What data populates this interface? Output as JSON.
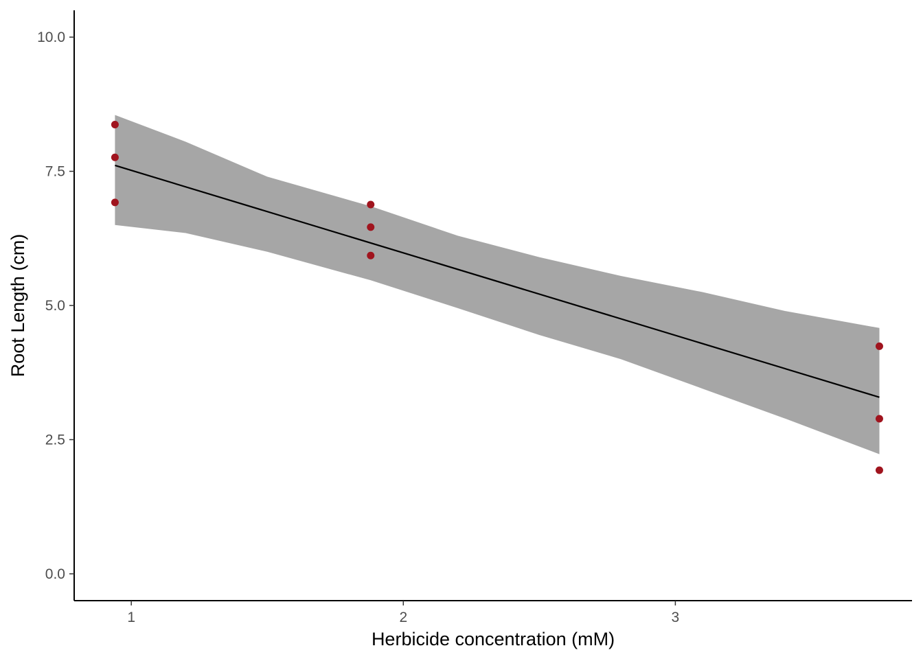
{
  "chart_data": {
    "type": "scatter",
    "title": "",
    "xlabel": "Herbicide concentration (mM)",
    "ylabel": "Root Length (cm)",
    "xlim": [
      0.79,
      3.87
    ],
    "ylim": [
      -0.5,
      10.5
    ],
    "xticks": [
      1,
      2,
      3
    ],
    "xtick_labels": [
      "1",
      "2",
      "3"
    ],
    "yticks": [
      0,
      2.5,
      5,
      7.5,
      10
    ],
    "ytick_labels": [
      "0.0",
      "2.5",
      "5.0",
      "7.5",
      "10.0"
    ],
    "grid": false,
    "legend": "none",
    "points": [
      {
        "x": 0.94,
        "y": 8.37
      },
      {
        "x": 0.94,
        "y": 7.76
      },
      {
        "x": 0.94,
        "y": 6.92
      },
      {
        "x": 1.88,
        "y": 6.88
      },
      {
        "x": 1.88,
        "y": 6.46
      },
      {
        "x": 1.88,
        "y": 5.93
      },
      {
        "x": 3.75,
        "y": 4.24
      },
      {
        "x": 3.75,
        "y": 2.89
      },
      {
        "x": 3.75,
        "y": 1.93
      }
    ],
    "fit_line": {
      "x": [
        0.94,
        3.75
      ],
      "y": [
        7.61,
        3.29
      ]
    },
    "confidence_band": {
      "x": [
        0.94,
        1.2,
        1.5,
        1.88,
        2.2,
        2.5,
        2.8,
        3.1,
        3.4,
        3.75
      ],
      "upper": [
        8.55,
        8.05,
        7.4,
        6.85,
        6.3,
        5.9,
        5.55,
        5.25,
        4.9,
        4.58
      ],
      "lower": [
        6.5,
        6.35,
        6.0,
        5.47,
        4.95,
        4.45,
        4.0,
        3.45,
        2.9,
        2.23
      ]
    },
    "colors": {
      "points": "#a0141e",
      "line": "#000000",
      "band": "#a6a6a6"
    }
  }
}
